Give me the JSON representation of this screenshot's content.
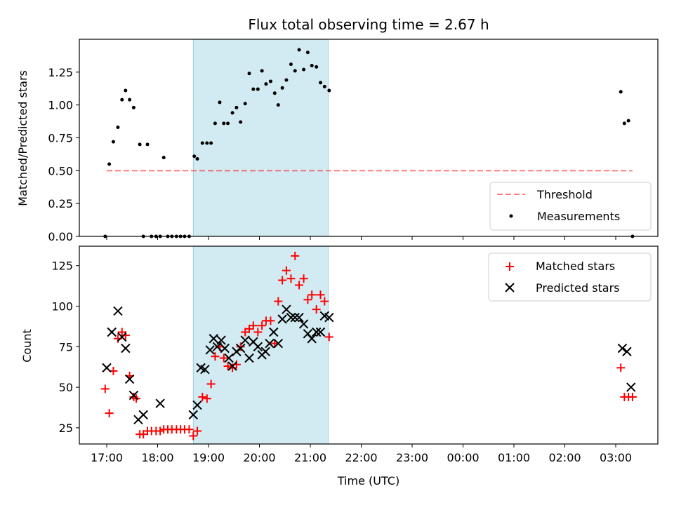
{
  "title": "Flux total observing time = 2.67 h",
  "colors": {
    "highlight": "#add8e6",
    "threshold": "#ff0000",
    "measurements": "#000000",
    "matched": "#ff0000",
    "predicted": "#000000"
  },
  "chart_data": [
    {
      "type": "scatter",
      "ylabel": "Matched/Predicted stars",
      "xlabel": "",
      "ylim": [
        0,
        1.5
      ],
      "yticks": [
        "0.00",
        "0.25",
        "0.50",
        "0.75",
        "1.00",
        "1.25"
      ],
      "xticks": [
        "17:00",
        "18:00",
        "19:00",
        "20:00",
        "21:00",
        "22:00",
        "23:00",
        "00:00",
        "01:00",
        "02:00",
        "03:00"
      ],
      "xticks_hours": [
        17,
        18,
        19,
        20,
        21,
        22,
        23,
        24,
        25,
        26,
        27
      ],
      "highlight_span_hours": [
        18.7,
        21.35
      ],
      "legend": {
        "position": "lower-right",
        "entries": [
          "Threshold",
          "Measurements"
        ]
      },
      "series": [
        {
          "name": "Threshold",
          "style": "dashed-line",
          "x_hours": [
            17.0,
            27.33
          ],
          "y": [
            0.5,
            0.5
          ]
        },
        {
          "name": "Measurements",
          "style": "dot",
          "x_hours": [
            16.97,
            17.05,
            17.13,
            17.22,
            17.3,
            17.37,
            17.45,
            17.53,
            17.65,
            17.72,
            17.8,
            17.88,
            17.97,
            18.05,
            18.12,
            18.2,
            18.28,
            18.37,
            18.45,
            18.53,
            18.62,
            18.72,
            18.78,
            18.88,
            18.97,
            19.05,
            19.13,
            19.22,
            19.3,
            19.38,
            19.47,
            19.55,
            19.63,
            19.72,
            19.8,
            19.88,
            19.97,
            20.05,
            20.13,
            20.22,
            20.3,
            20.37,
            20.45,
            20.53,
            20.62,
            20.7,
            20.78,
            20.87,
            20.95,
            21.03,
            21.12,
            21.2,
            21.28,
            21.37,
            27.1,
            27.17,
            27.25,
            27.33
          ],
          "y": [
            0.0,
            0.55,
            0.72,
            0.83,
            1.04,
            1.11,
            1.04,
            0.98,
            0.7,
            0.0,
            0.7,
            0.0,
            0.0,
            0.0,
            0.6,
            0.0,
            0.0,
            0.0,
            0.0,
            0.0,
            0.0,
            0.61,
            0.59,
            0.71,
            0.71,
            0.71,
            0.86,
            1.02,
            0.86,
            0.86,
            0.94,
            0.98,
            0.87,
            1.01,
            1.24,
            1.12,
            1.12,
            1.26,
            1.16,
            1.18,
            1.09,
            1.0,
            1.13,
            1.19,
            1.31,
            1.26,
            1.42,
            1.27,
            1.4,
            1.3,
            1.29,
            1.17,
            1.14,
            1.11,
            1.1,
            0.86,
            0.88,
            0.0
          ]
        }
      ]
    },
    {
      "type": "scatter",
      "ylabel": "Count",
      "xlabel": "Time (UTC)",
      "ylim": [
        15,
        137
      ],
      "yticks": [
        "25",
        "50",
        "75",
        "100",
        "125"
      ],
      "xticks": [
        "17:00",
        "18:00",
        "19:00",
        "20:00",
        "21:00",
        "22:00",
        "23:00",
        "00:00",
        "01:00",
        "02:00",
        "03:00"
      ],
      "xticks_hours": [
        17,
        18,
        19,
        20,
        21,
        22,
        23,
        24,
        25,
        26,
        27
      ],
      "highlight_span_hours": [
        18.7,
        21.35
      ],
      "legend": {
        "position": "upper-right",
        "entries": [
          "Matched stars",
          "Predicted stars"
        ]
      },
      "series": [
        {
          "name": "Matched stars",
          "style": "plus",
          "x_hours": [
            16.97,
            17.05,
            17.13,
            17.22,
            17.3,
            17.37,
            17.45,
            17.53,
            17.58,
            17.65,
            17.72,
            17.8,
            17.88,
            17.97,
            18.05,
            18.12,
            18.2,
            18.28,
            18.37,
            18.45,
            18.53,
            18.62,
            18.7,
            18.78,
            18.88,
            18.97,
            19.05,
            19.13,
            19.22,
            19.3,
            19.38,
            19.47,
            19.55,
            19.63,
            19.72,
            19.8,
            19.88,
            19.97,
            20.05,
            20.13,
            20.22,
            20.3,
            20.37,
            20.45,
            20.53,
            20.62,
            20.7,
            20.78,
            20.87,
            20.95,
            21.03,
            21.12,
            21.2,
            21.28,
            21.37,
            27.1,
            27.17,
            27.25,
            27.33
          ],
          "y": [
            49,
            34,
            60,
            80,
            84,
            82,
            57,
            44,
            43,
            21,
            21,
            23,
            23,
            23,
            23,
            24,
            24,
            24,
            24,
            24,
            24,
            24,
            20,
            23,
            44,
            43,
            52,
            69,
            75,
            68,
            63,
            62,
            64,
            75,
            84,
            86,
            88,
            84,
            88,
            91,
            91,
            77,
            103,
            116,
            122,
            117,
            131,
            113,
            117,
            104,
            107,
            98,
            107,
            103,
            81,
            62,
            44,
            44,
            44
          ]
        },
        {
          "name": "Predicted stars",
          "style": "x",
          "x_hours": [
            17.0,
            17.1,
            17.22,
            17.3,
            17.37,
            17.45,
            17.53,
            17.62,
            17.72,
            18.05,
            18.7,
            18.78,
            18.85,
            18.93,
            19.03,
            19.1,
            19.17,
            19.25,
            19.32,
            19.4,
            19.47,
            19.55,
            19.63,
            19.72,
            19.8,
            19.88,
            19.97,
            20.05,
            20.12,
            20.2,
            20.28,
            20.37,
            20.45,
            20.53,
            20.62,
            20.7,
            20.78,
            20.87,
            20.95,
            21.03,
            21.12,
            21.2,
            21.28,
            21.37,
            27.13,
            27.22,
            27.3
          ],
          "y": [
            62,
            84,
            97,
            81,
            74,
            55,
            45,
            30,
            33,
            40,
            33,
            39,
            62,
            61,
            73,
            80,
            75,
            79,
            74,
            68,
            63,
            72,
            74,
            79,
            68,
            78,
            75,
            70,
            72,
            77,
            84,
            77,
            92,
            98,
            93,
            93,
            93,
            89,
            83,
            80,
            84,
            84,
            94,
            93,
            74,
            72,
            50
          ]
        }
      ]
    }
  ]
}
